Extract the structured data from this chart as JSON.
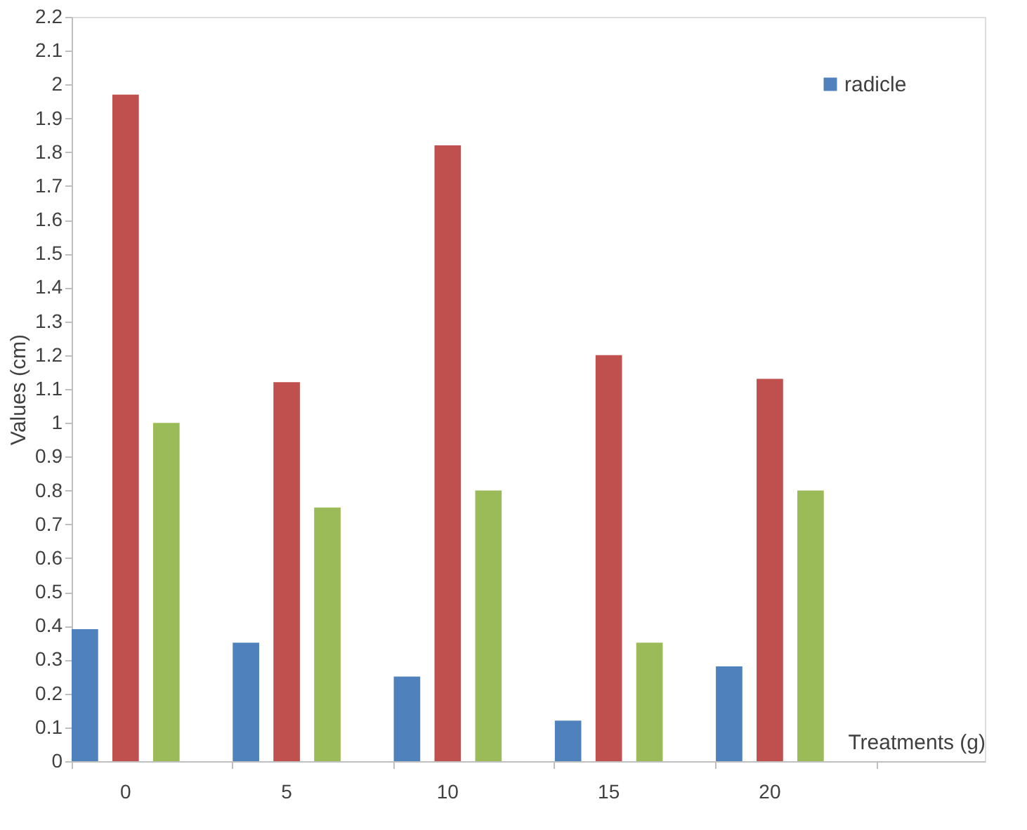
{
  "chart_data": {
    "type": "bar",
    "xlabel": "Treatments (g)",
    "ylabel": "Values (cm)",
    "categories": [
      "0",
      "5",
      "10",
      "15",
      "20",
      null
    ],
    "series": [
      {
        "name": "radicle",
        "color": "#4f81bd",
        "values": [
          0.39,
          0.35,
          0.25,
          0.12,
          0.28,
          null
        ]
      },
      {
        "color": "#c0504d",
        "values": [
          1.97,
          1.12,
          1.82,
          1.2,
          1.13,
          null
        ]
      },
      {
        "color": "#9bbb59",
        "values": [
          1.0,
          0.75,
          0.8,
          0.35,
          0.8,
          null
        ]
      }
    ],
    "ylim": [
      0,
      2.2
    ],
    "yticks": [
      0,
      0.1,
      0.2,
      0.3,
      0.4,
      0.5,
      0.6,
      0.7,
      0.8,
      0.9,
      1,
      1.1,
      1.2,
      1.3,
      1.4,
      1.5,
      1.6,
      1.7,
      1.8,
      1.9,
      2,
      2.1,
      2.2
    ],
    "grid": false,
    "legend": "top right"
  }
}
